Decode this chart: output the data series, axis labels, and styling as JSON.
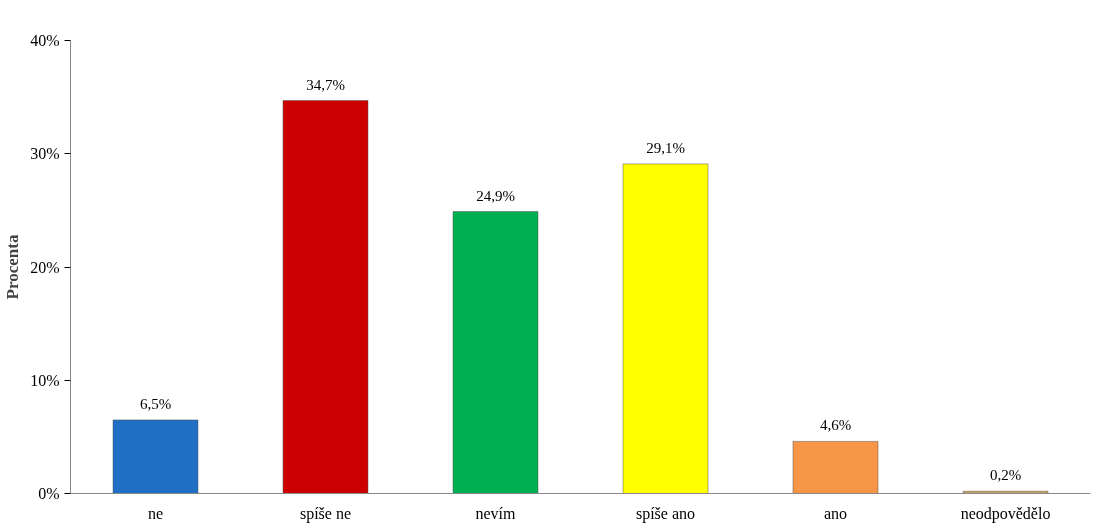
{
  "chart_data": {
    "type": "bar",
    "ylabel": "Procenta",
    "categories": [
      "ne",
      "spíše ne",
      "nevím",
      "spíše ano",
      "ano",
      "neodpovědělo"
    ],
    "values": [
      6.5,
      34.7,
      24.9,
      29.1,
      4.6,
      0.2
    ],
    "colors": [
      "#1f6fc5",
      "#cc0000",
      "#00b050",
      "#ffff00",
      "#f79646",
      "#c8a060"
    ],
    "value_labels": [
      "6,5%",
      "34,7%",
      "24,9%",
      "29,1%",
      "4,6%",
      "0,2%"
    ],
    "ylim": [
      0,
      40
    ],
    "yticks": [
      {
        "value": 0,
        "label": "0%"
      },
      {
        "value": 10,
        "label": "10%"
      },
      {
        "value": 20,
        "label": "20%"
      },
      {
        "value": 30,
        "label": "30%"
      },
      {
        "value": 40,
        "label": "40%"
      }
    ],
    "grid": false
  }
}
